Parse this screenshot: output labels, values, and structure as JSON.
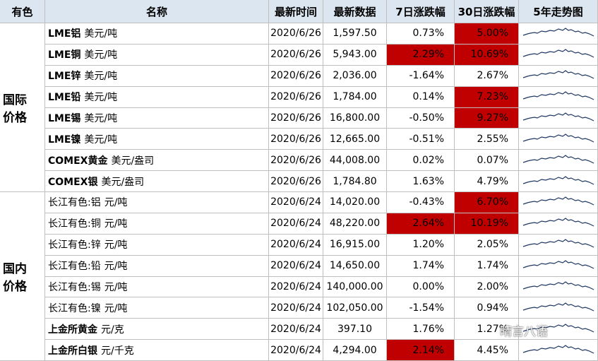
{
  "header": [
    "有色",
    "名称",
    "最新时间",
    "最新数据",
    "7日涨跌幅",
    "30日涨跌幅",
    "5年走势图"
  ],
  "groups": [
    {
      "label": [
        "国际",
        "价格"
      ],
      "rows": [
        {
          "name": "LME铝",
          "unit": "美元/吨",
          "date": "2020/6/26",
          "value": "1,597.50",
          "d7": "0.73%",
          "d30": "5.00%",
          "bold": true,
          "red": [
            "d30"
          ]
        },
        {
          "name": "LME铜",
          "unit": "美元/吨",
          "date": "2020/6/26",
          "value": "5,943.00",
          "d7": "2.29%",
          "d30": "10.69%",
          "bold": true,
          "red": [
            "d7",
            "d30"
          ]
        },
        {
          "name": "LME锌",
          "unit": "美元/吨",
          "date": "2020/6/26",
          "value": "2,036.00",
          "d7": "-1.64%",
          "d30": "2.67%",
          "bold": true,
          "red": []
        },
        {
          "name": "LME铅",
          "unit": "美元/吨",
          "date": "2020/6/26",
          "value": "1,784.00",
          "d7": "0.14%",
          "d30": "7.23%",
          "bold": true,
          "red": [
            "d30"
          ]
        },
        {
          "name": "LME锡",
          "unit": "美元/吨",
          "date": "2020/6/26",
          "value": "16,800.00",
          "d7": "-0.50%",
          "d30": "9.27%",
          "bold": true,
          "red": [
            "d30"
          ]
        },
        {
          "name": "LME镍",
          "unit": "美元/吨",
          "date": "2020/6/26",
          "value": "12,665.00",
          "d7": "-0.51%",
          "d30": "2.55%",
          "bold": true,
          "red": []
        },
        {
          "name": "COMEX黄金",
          "unit": "美元/盎司",
          "date": "2020/6/26",
          "value": "44,008.00",
          "d7": "0.02%",
          "d30": "0.07%",
          "bold": true,
          "red": []
        },
        {
          "name": "COMEX银",
          "unit": "美元/盎司",
          "date": "2020/6/26",
          "value": "1,784.80",
          "d7": "1.63%",
          "d30": "4.79%",
          "bold": true,
          "red": []
        }
      ]
    },
    {
      "label": [
        "国内",
        "价格"
      ],
      "rows": [
        {
          "name": "长江有色:铝",
          "unit": "元/吨",
          "date": "2020/6/24",
          "value": "14,020.00",
          "d7": "-0.43%",
          "d30": "6.70%",
          "bold": false,
          "red": [
            "d30"
          ]
        },
        {
          "name": "长江有色:铜",
          "unit": "元/吨",
          "date": "2020/6/24",
          "value": "48,220.00",
          "d7": "2.64%",
          "d30": "10.19%",
          "bold": false,
          "red": [
            "d7",
            "d30"
          ]
        },
        {
          "name": "长江有色:锌",
          "unit": "元/吨",
          "date": "2020/6/24",
          "value": "16,915.00",
          "d7": "1.20%",
          "d30": "2.05%",
          "bold": false,
          "red": []
        },
        {
          "name": "长江有色:铅",
          "unit": "元/吨",
          "date": "2020/6/24",
          "value": "14,650.00",
          "d7": "1.74%",
          "d30": "1.74%",
          "bold": false,
          "red": []
        },
        {
          "name": "长江有色:锡",
          "unit": "元/吨",
          "date": "2020/6/24",
          "value": "140,000.00",
          "d7": "0.00%",
          "d30": "2.00%",
          "bold": false,
          "red": []
        },
        {
          "name": "长江有色:镍",
          "unit": "元/吨",
          "date": "2020/6/24",
          "value": "102,050.00",
          "d7": "-1.54%",
          "d30": "0.94%",
          "bold": false,
          "red": []
        },
        {
          "name": "上金所黄金",
          "unit": "元/克",
          "date": "2020/6/24",
          "value": "397.10",
          "d7": "1.76%",
          "d30": "1.27%",
          "bold": true,
          "red": []
        },
        {
          "name": "上金所白银",
          "unit": "元/千克",
          "date": "2020/6/24",
          "value": "4,294.00",
          "d7": "2.14%",
          "d30": "4.45%",
          "bold": true,
          "red": [
            "d7"
          ]
        }
      ]
    }
  ],
  "watermark": "晴言八语"
}
